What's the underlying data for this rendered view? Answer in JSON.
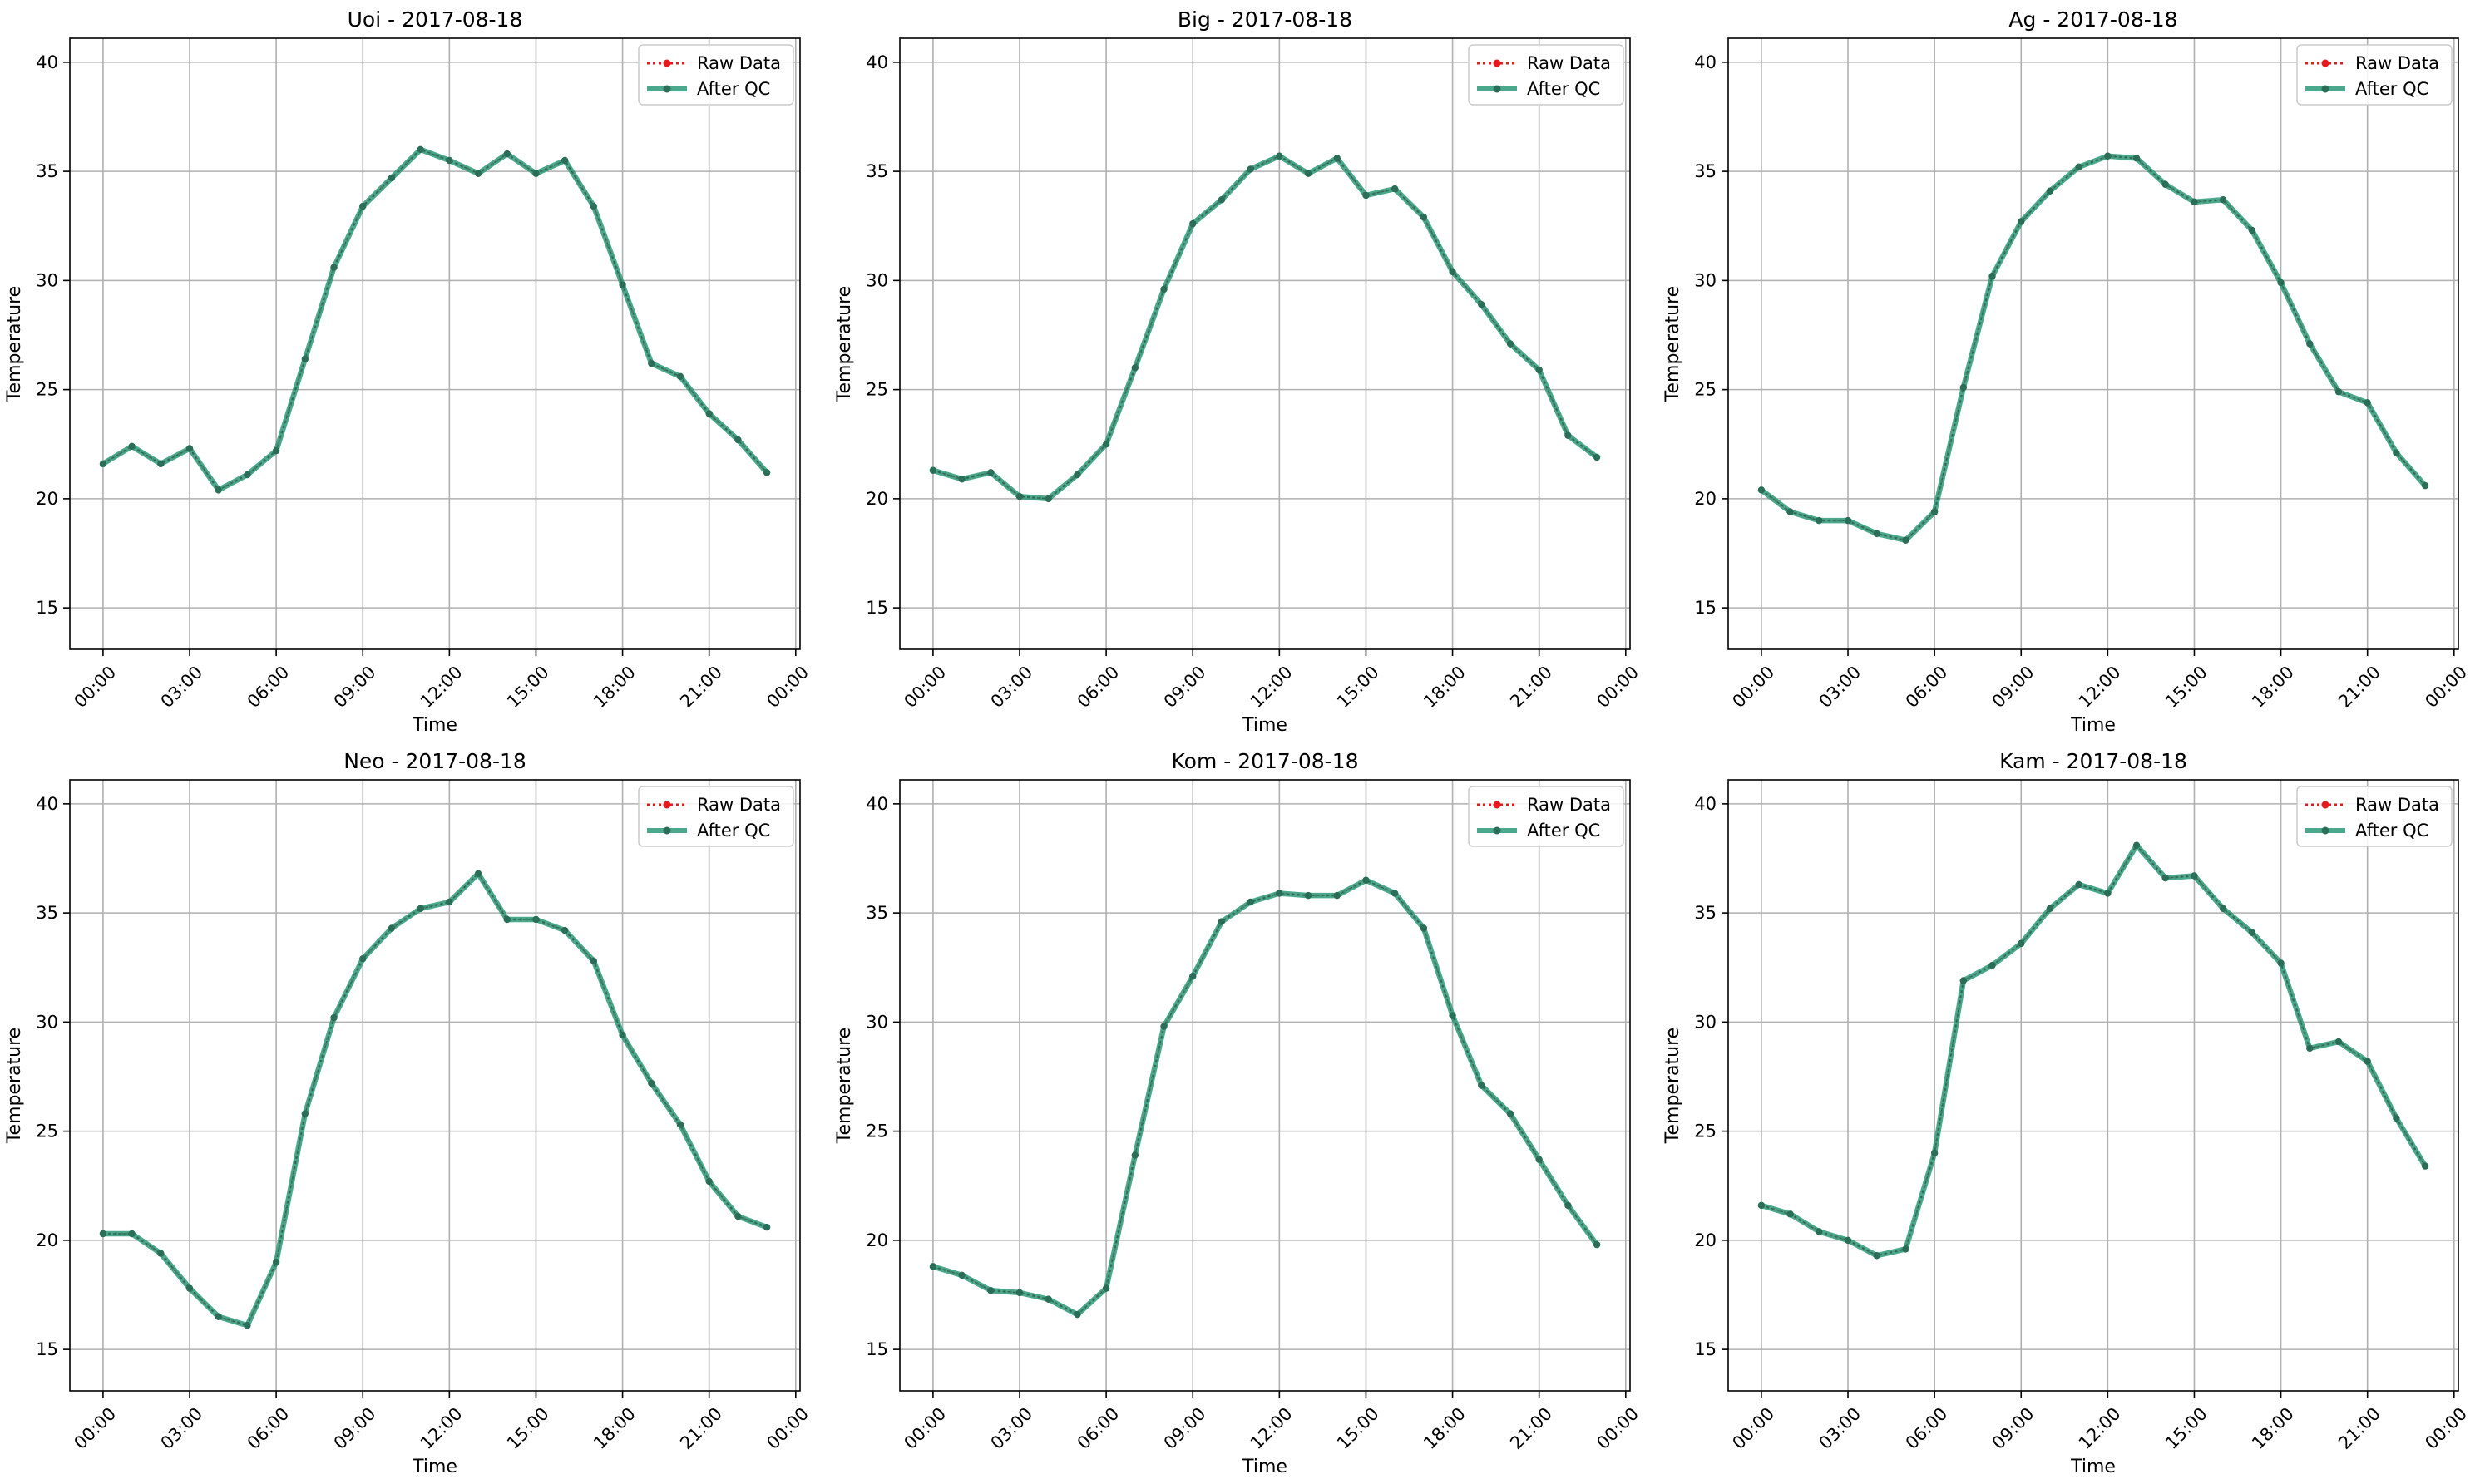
{
  "figure": {
    "cols": 3,
    "rows": 2
  },
  "colors": {
    "raw": "#e41a1c",
    "qc": "#2a9a78",
    "qc_marker": "#2b6e58",
    "grid": "#b0b0b0"
  },
  "chart_data": [
    {
      "type": "line",
      "title": "Uoi - 2017-08-18",
      "xlabel": "Time",
      "ylabel": "Temperature",
      "xlim": [
        -1.15,
        24.15
      ],
      "ylim": [
        13.1,
        41.1
      ],
      "x_ticks": [
        "00:00",
        "03:00",
        "06:00",
        "09:00",
        "12:00",
        "15:00",
        "18:00",
        "21:00",
        "00:00"
      ],
      "x_tick_hours": [
        0,
        3,
        6,
        9,
        12,
        15,
        18,
        21,
        24
      ],
      "y_ticks": [
        15,
        20,
        25,
        30,
        35,
        40
      ],
      "grid": true,
      "legend": "top-right",
      "x": [
        0,
        1,
        2,
        3,
        4,
        5,
        6,
        7,
        8,
        9,
        10,
        11,
        12,
        13,
        14,
        15,
        16,
        17,
        18,
        19,
        20,
        21,
        22,
        23
      ],
      "series": [
        {
          "name": "Raw Data",
          "style": "dotted-red",
          "values": [
            21.6,
            22.4,
            21.6,
            22.3,
            20.4,
            21.1,
            22.2,
            26.4,
            30.6,
            33.4,
            34.7,
            36.0,
            35.5,
            34.9,
            35.8,
            34.9,
            35.5,
            33.4,
            29.8,
            26.2,
            25.6,
            23.9,
            22.7,
            21.2
          ]
        },
        {
          "name": "After QC",
          "style": "solid-green",
          "values": [
            21.6,
            22.4,
            21.6,
            22.3,
            20.4,
            21.1,
            22.2,
            26.4,
            30.6,
            33.4,
            34.7,
            36.0,
            35.5,
            34.9,
            35.8,
            34.9,
            35.5,
            33.4,
            29.8,
            26.2,
            25.6,
            23.9,
            22.7,
            21.2
          ]
        }
      ]
    },
    {
      "type": "line",
      "title": "Big - 2017-08-18",
      "xlabel": "Time",
      "ylabel": "Temperature",
      "xlim": [
        -1.15,
        24.15
      ],
      "ylim": [
        13.1,
        41.1
      ],
      "x_ticks": [
        "00:00",
        "03:00",
        "06:00",
        "09:00",
        "12:00",
        "15:00",
        "18:00",
        "21:00",
        "00:00"
      ],
      "x_tick_hours": [
        0,
        3,
        6,
        9,
        12,
        15,
        18,
        21,
        24
      ],
      "y_ticks": [
        15,
        20,
        25,
        30,
        35,
        40
      ],
      "grid": true,
      "legend": "top-right",
      "x": [
        0,
        1,
        2,
        3,
        4,
        5,
        6,
        7,
        8,
        9,
        10,
        11,
        12,
        13,
        14,
        15,
        16,
        17,
        18,
        19,
        20,
        21,
        22,
        23
      ],
      "series": [
        {
          "name": "Raw Data",
          "style": "dotted-red",
          "values": [
            21.3,
            20.9,
            21.2,
            20.1,
            20.0,
            21.1,
            22.5,
            26.0,
            29.6,
            32.6,
            33.7,
            35.1,
            35.7,
            34.9,
            35.6,
            33.9,
            34.2,
            32.9,
            30.4,
            28.9,
            27.1,
            25.9,
            22.9,
            21.9
          ]
        },
        {
          "name": "After QC",
          "style": "solid-green",
          "values": [
            21.3,
            20.9,
            21.2,
            20.1,
            20.0,
            21.1,
            22.5,
            26.0,
            29.6,
            32.6,
            33.7,
            35.1,
            35.7,
            34.9,
            35.6,
            33.9,
            34.2,
            32.9,
            30.4,
            28.9,
            27.1,
            25.9,
            22.9,
            21.9
          ]
        }
      ]
    },
    {
      "type": "line",
      "title": "Ag - 2017-08-18",
      "xlabel": "Time",
      "ylabel": "Temperature",
      "xlim": [
        -1.15,
        24.15
      ],
      "ylim": [
        13.1,
        41.1
      ],
      "x_ticks": [
        "00:00",
        "03:00",
        "06:00",
        "09:00",
        "12:00",
        "15:00",
        "18:00",
        "21:00",
        "00:00"
      ],
      "x_tick_hours": [
        0,
        3,
        6,
        9,
        12,
        15,
        18,
        21,
        24
      ],
      "y_ticks": [
        15,
        20,
        25,
        30,
        35,
        40
      ],
      "grid": true,
      "legend": "top-right",
      "x": [
        0,
        1,
        2,
        3,
        4,
        5,
        6,
        7,
        8,
        9,
        10,
        11,
        12,
        13,
        14,
        15,
        16,
        17,
        18,
        19,
        20,
        21,
        22,
        23
      ],
      "series": [
        {
          "name": "Raw Data",
          "style": "dotted-red",
          "values": [
            20.4,
            19.4,
            19.0,
            19.0,
            18.4,
            18.1,
            19.4,
            25.1,
            30.2,
            32.7,
            34.1,
            35.2,
            35.7,
            35.6,
            34.4,
            33.6,
            33.7,
            32.3,
            29.9,
            27.1,
            24.9,
            24.4,
            22.1,
            20.6
          ]
        },
        {
          "name": "After QC",
          "style": "solid-green",
          "values": [
            20.4,
            19.4,
            19.0,
            19.0,
            18.4,
            18.1,
            19.4,
            25.1,
            30.2,
            32.7,
            34.1,
            35.2,
            35.7,
            35.6,
            34.4,
            33.6,
            33.7,
            32.3,
            29.9,
            27.1,
            24.9,
            24.4,
            22.1,
            20.6
          ]
        }
      ]
    },
    {
      "type": "line",
      "title": "Neo - 2017-08-18",
      "xlabel": "Time",
      "ylabel": "Temperature",
      "xlim": [
        -1.15,
        24.15
      ],
      "ylim": [
        13.1,
        41.1
      ],
      "x_ticks": [
        "00:00",
        "03:00",
        "06:00",
        "09:00",
        "12:00",
        "15:00",
        "18:00",
        "21:00",
        "00:00"
      ],
      "x_tick_hours": [
        0,
        3,
        6,
        9,
        12,
        15,
        18,
        21,
        24
      ],
      "y_ticks": [
        15,
        20,
        25,
        30,
        35,
        40
      ],
      "grid": true,
      "legend": "top-right",
      "x": [
        0,
        1,
        2,
        3,
        4,
        5,
        6,
        7,
        8,
        9,
        10,
        11,
        12,
        13,
        14,
        15,
        16,
        17,
        18,
        19,
        20,
        21,
        22,
        23
      ],
      "series": [
        {
          "name": "Raw Data",
          "style": "dotted-red",
          "values": [
            20.3,
            20.3,
            19.4,
            17.8,
            16.5,
            16.1,
            19.0,
            25.8,
            30.2,
            32.9,
            34.3,
            35.2,
            35.5,
            36.8,
            34.7,
            34.7,
            34.2,
            32.8,
            29.4,
            27.2,
            25.3,
            22.7,
            21.1,
            20.6
          ]
        },
        {
          "name": "After QC",
          "style": "solid-green",
          "values": [
            20.3,
            20.3,
            19.4,
            17.8,
            16.5,
            16.1,
            19.0,
            25.8,
            30.2,
            32.9,
            34.3,
            35.2,
            35.5,
            36.8,
            34.7,
            34.7,
            34.2,
            32.8,
            29.4,
            27.2,
            25.3,
            22.7,
            21.1,
            20.6
          ]
        }
      ]
    },
    {
      "type": "line",
      "title": "Kom - 2017-08-18",
      "xlabel": "Time",
      "ylabel": "Temperature",
      "xlim": [
        -1.15,
        24.15
      ],
      "ylim": [
        13.1,
        41.1
      ],
      "x_ticks": [
        "00:00",
        "03:00",
        "06:00",
        "09:00",
        "12:00",
        "15:00",
        "18:00",
        "21:00",
        "00:00"
      ],
      "x_tick_hours": [
        0,
        3,
        6,
        9,
        12,
        15,
        18,
        21,
        24
      ],
      "y_ticks": [
        15,
        20,
        25,
        30,
        35,
        40
      ],
      "grid": true,
      "legend": "top-right",
      "x": [
        0,
        1,
        2,
        3,
        4,
        5,
        6,
        7,
        8,
        9,
        10,
        11,
        12,
        13,
        14,
        15,
        16,
        17,
        18,
        19,
        20,
        21,
        22,
        23
      ],
      "series": [
        {
          "name": "Raw Data",
          "style": "dotted-red",
          "values": [
            18.8,
            18.4,
            17.7,
            17.6,
            17.3,
            16.6,
            17.8,
            23.9,
            29.8,
            32.1,
            34.6,
            35.5,
            35.9,
            35.8,
            35.8,
            36.5,
            35.9,
            34.3,
            30.3,
            27.1,
            25.8,
            23.7,
            21.6,
            19.8
          ]
        },
        {
          "name": "After QC",
          "style": "solid-green",
          "values": [
            18.8,
            18.4,
            17.7,
            17.6,
            17.3,
            16.6,
            17.8,
            23.9,
            29.8,
            32.1,
            34.6,
            35.5,
            35.9,
            35.8,
            35.8,
            36.5,
            35.9,
            34.3,
            30.3,
            27.1,
            25.8,
            23.7,
            21.6,
            19.8
          ]
        }
      ]
    },
    {
      "type": "line",
      "title": "Kam - 2017-08-18",
      "xlabel": "Time",
      "ylabel": "Temperature",
      "xlim": [
        -1.15,
        24.15
      ],
      "ylim": [
        13.1,
        41.1
      ],
      "x_ticks": [
        "00:00",
        "03:00",
        "06:00",
        "09:00",
        "12:00",
        "15:00",
        "18:00",
        "21:00",
        "00:00"
      ],
      "x_tick_hours": [
        0,
        3,
        6,
        9,
        12,
        15,
        18,
        21,
        24
      ],
      "y_ticks": [
        15,
        20,
        25,
        30,
        35,
        40
      ],
      "grid": true,
      "legend": "top-right",
      "x": [
        0,
        1,
        2,
        3,
        4,
        5,
        6,
        7,
        8,
        9,
        10,
        11,
        12,
        13,
        14,
        15,
        16,
        17,
        18,
        19,
        20,
        21,
        22,
        23
      ],
      "series": [
        {
          "name": "Raw Data",
          "style": "dotted-red",
          "values": [
            21.6,
            21.2,
            20.4,
            20.0,
            19.3,
            19.6,
            24.0,
            31.9,
            32.6,
            33.6,
            35.2,
            36.3,
            35.9,
            38.1,
            36.6,
            36.7,
            35.2,
            34.1,
            32.7,
            28.8,
            29.1,
            28.2,
            25.6,
            23.4
          ]
        },
        {
          "name": "After QC",
          "style": "solid-green",
          "values": [
            21.6,
            21.2,
            20.4,
            20.0,
            19.3,
            19.6,
            24.0,
            31.9,
            32.6,
            33.6,
            35.2,
            36.3,
            35.9,
            38.1,
            36.6,
            36.7,
            35.2,
            34.1,
            32.7,
            28.8,
            29.1,
            28.2,
            25.6,
            23.4
          ]
        }
      ]
    }
  ]
}
